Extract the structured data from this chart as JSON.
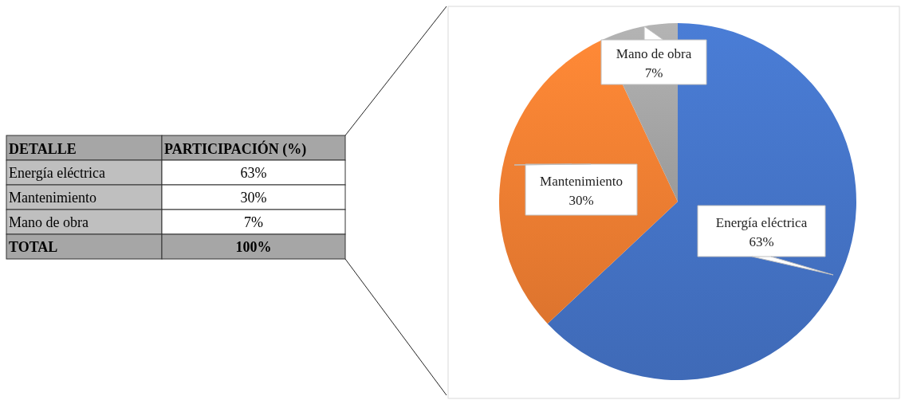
{
  "chart_data": {
    "type": "pie",
    "categories": [
      "Energía eléctrica",
      "Mantenimiento",
      "Mano de obra"
    ],
    "values": [
      63,
      30,
      7
    ],
    "colors": [
      "#4472c4",
      "#ed7d31",
      "#a5a5a5"
    ],
    "value_labels": [
      "63%",
      "30%",
      "7%"
    ],
    "annotations": [
      "DETALLE",
      "PARTICIPACIÓN (%)",
      "TOTAL",
      "100%"
    ]
  }
}
